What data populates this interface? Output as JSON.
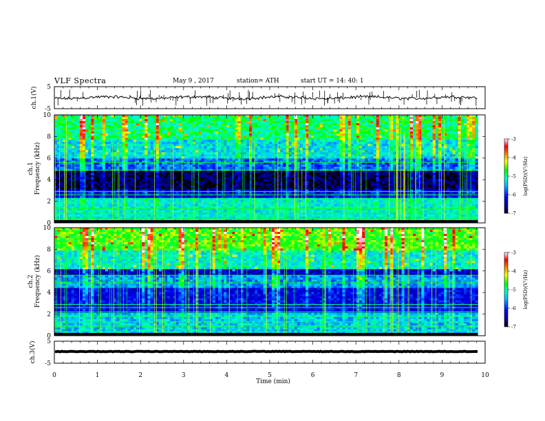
{
  "header": {
    "title": "VLF  Spectra",
    "date": "May 9  , 2017",
    "station": "station= ATH",
    "start_ut": "start  UT  =   14: 40: 1"
  },
  "colors": {
    "background": "#ffffff",
    "trace": "#000000",
    "colormap": [
      "#000000",
      "#00007f",
      "#0000ff",
      "#00bfff",
      "#00ffc0",
      "#00ff00",
      "#ffff00",
      "#ff8000",
      "#ff0000",
      "#ffffff"
    ]
  },
  "chart_data": [
    {
      "type": "line",
      "name": "ch1-waveform",
      "ylabel": "ch.1(V)",
      "ylim": [
        -5,
        5
      ],
      "y_ticks": [
        "5",
        "-5"
      ],
      "xlim": [
        0,
        10
      ],
      "x_unit": "min",
      "data_end_min": 9.83,
      "series": [
        {
          "values_summary": "noisy trace around 0 V, amplitude about ±1 V with spikes to ±3 V"
        }
      ]
    },
    {
      "type": "heatmap",
      "name": "ch1-spectrogram",
      "ylabel": "ch.1\nFrequency  (kHz)",
      "ylim": [
        0,
        10
      ],
      "y_ticks": [
        "0",
        "2",
        "4",
        "6",
        "8",
        "10"
      ],
      "xlim": [
        0,
        10
      ],
      "data_end_min": 9.83,
      "colorbar": {
        "label": "log(PSD)(V²/Hz)",
        "range": [
          -7,
          -3
        ],
        "ticks": [
          "-3",
          "-4",
          "-5",
          "-6",
          "-7"
        ]
      },
      "bands_khz": [
        {
          "from": 0,
          "to": 2.4,
          "logpsd": -5.2
        },
        {
          "from": 2.4,
          "to": 3.0,
          "logpsd": -6.2
        },
        {
          "from": 3.0,
          "to": 4.9,
          "logpsd": -6.8
        },
        {
          "from": 4.9,
          "to": 6.0,
          "logpsd": -5.8
        },
        {
          "from": 6.0,
          "to": 7.6,
          "logpsd": -5.3
        },
        {
          "from": 7.6,
          "to": 10,
          "logpsd": -4.9
        }
      ]
    },
    {
      "type": "heatmap",
      "name": "ch2-spectrogram",
      "ylabel": "ch.2\nFrequency  (kHz)",
      "ylim": [
        0,
        10
      ],
      "y_ticks": [
        "0",
        "2",
        "4",
        "6",
        "8",
        "10"
      ],
      "xlim": [
        0,
        10
      ],
      "data_end_min": 9.83,
      "colorbar": {
        "label": "log(PSD)(V²/Hz)",
        "range": [
          -7,
          -3
        ],
        "ticks": [
          "-3",
          "-4",
          "-5",
          "-6",
          "-7"
        ]
      },
      "bands_khz": [
        {
          "from": 0,
          "to": 2.2,
          "logpsd": -5.4
        },
        {
          "from": 2.2,
          "to": 4.5,
          "logpsd": -6.2
        },
        {
          "from": 4.5,
          "to": 5.6,
          "logpsd": -5.6
        },
        {
          "from": 5.6,
          "to": 6.2,
          "logpsd": -6.4
        },
        {
          "from": 6.2,
          "to": 7.8,
          "logpsd": -5.2
        },
        {
          "from": 7.8,
          "to": 10,
          "logpsd": -4.6
        }
      ]
    },
    {
      "type": "line",
      "name": "ch3-waveform",
      "ylabel": "ch.3(V)",
      "ylim": [
        -5,
        5
      ],
      "y_ticks": [
        "5",
        "-5"
      ],
      "xlim": [
        0,
        10
      ],
      "xlabel": "Time  (min)",
      "x_ticks": [
        "0",
        "1",
        "2",
        "3",
        "4",
        "5",
        "6",
        "7",
        "8",
        "9",
        "10"
      ],
      "data_end_min": 9.83,
      "series": [
        {
          "values_summary": "thick nearly constant trace at about -1 V"
        }
      ]
    }
  ]
}
